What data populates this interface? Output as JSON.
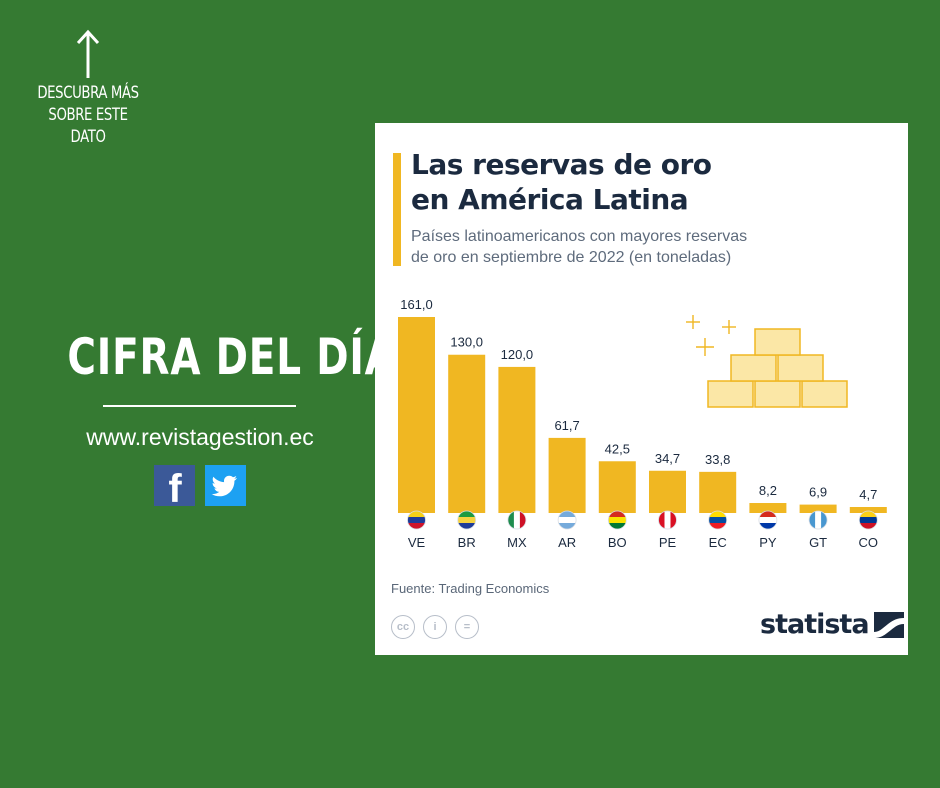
{
  "sidebar": {
    "cta_lines": [
      "DESCUBRA MÁS",
      "SOBRE ESTE",
      "DATO"
    ],
    "headline": "CIFRA DEL DÍA",
    "website": "www.revistagestion.ec",
    "social": [
      {
        "name": "facebook",
        "icon": "facebook-icon",
        "glyph": "f",
        "color": "#3b5998"
      },
      {
        "name": "twitter",
        "icon": "twitter-icon",
        "color": "#1da1f2"
      }
    ]
  },
  "card": {
    "title_line1": "Las reservas de oro",
    "title_line2": "en América Latina",
    "subtitle_line1": "Países latinoamericanos con mayores reservas",
    "subtitle_line2": "de oro en septiembre de 2022 (en toneladas)",
    "source": "Fuente: Trading Economics",
    "license_icons": [
      "cc-icon",
      "attribution-icon",
      "no-derivatives-icon"
    ],
    "license_glyphs": [
      "cc",
      "i",
      "="
    ],
    "brand": "statista"
  },
  "colors": {
    "background": "#357a32",
    "bar": "#f0b722",
    "title": "#1b2a3f"
  },
  "chart_data": {
    "type": "bar",
    "title": "Las reservas de oro en América Latina",
    "ylabel": "toneladas",
    "categories": [
      "VE",
      "BR",
      "MX",
      "AR",
      "BO",
      "PE",
      "EC",
      "PY",
      "GT",
      "CO"
    ],
    "values": [
      161.0,
      130.0,
      120.0,
      61.7,
      42.5,
      34.7,
      33.8,
      8.2,
      6.9,
      4.7
    ],
    "value_labels": [
      "161,0",
      "130,0",
      "120,0",
      "61,7",
      "42,5",
      "34,7",
      "33,8",
      "8,2",
      "6,9",
      "4,7"
    ],
    "flags": [
      "venezuela-flag-icon",
      "brazil-flag-icon",
      "mexico-flag-icon",
      "argentina-flag-icon",
      "bolivia-flag-icon",
      "peru-flag-icon",
      "ecuador-flag-icon",
      "paraguay-flag-icon",
      "guatemala-flag-icon",
      "colombia-flag-icon"
    ],
    "ylim": [
      0,
      161
    ]
  }
}
